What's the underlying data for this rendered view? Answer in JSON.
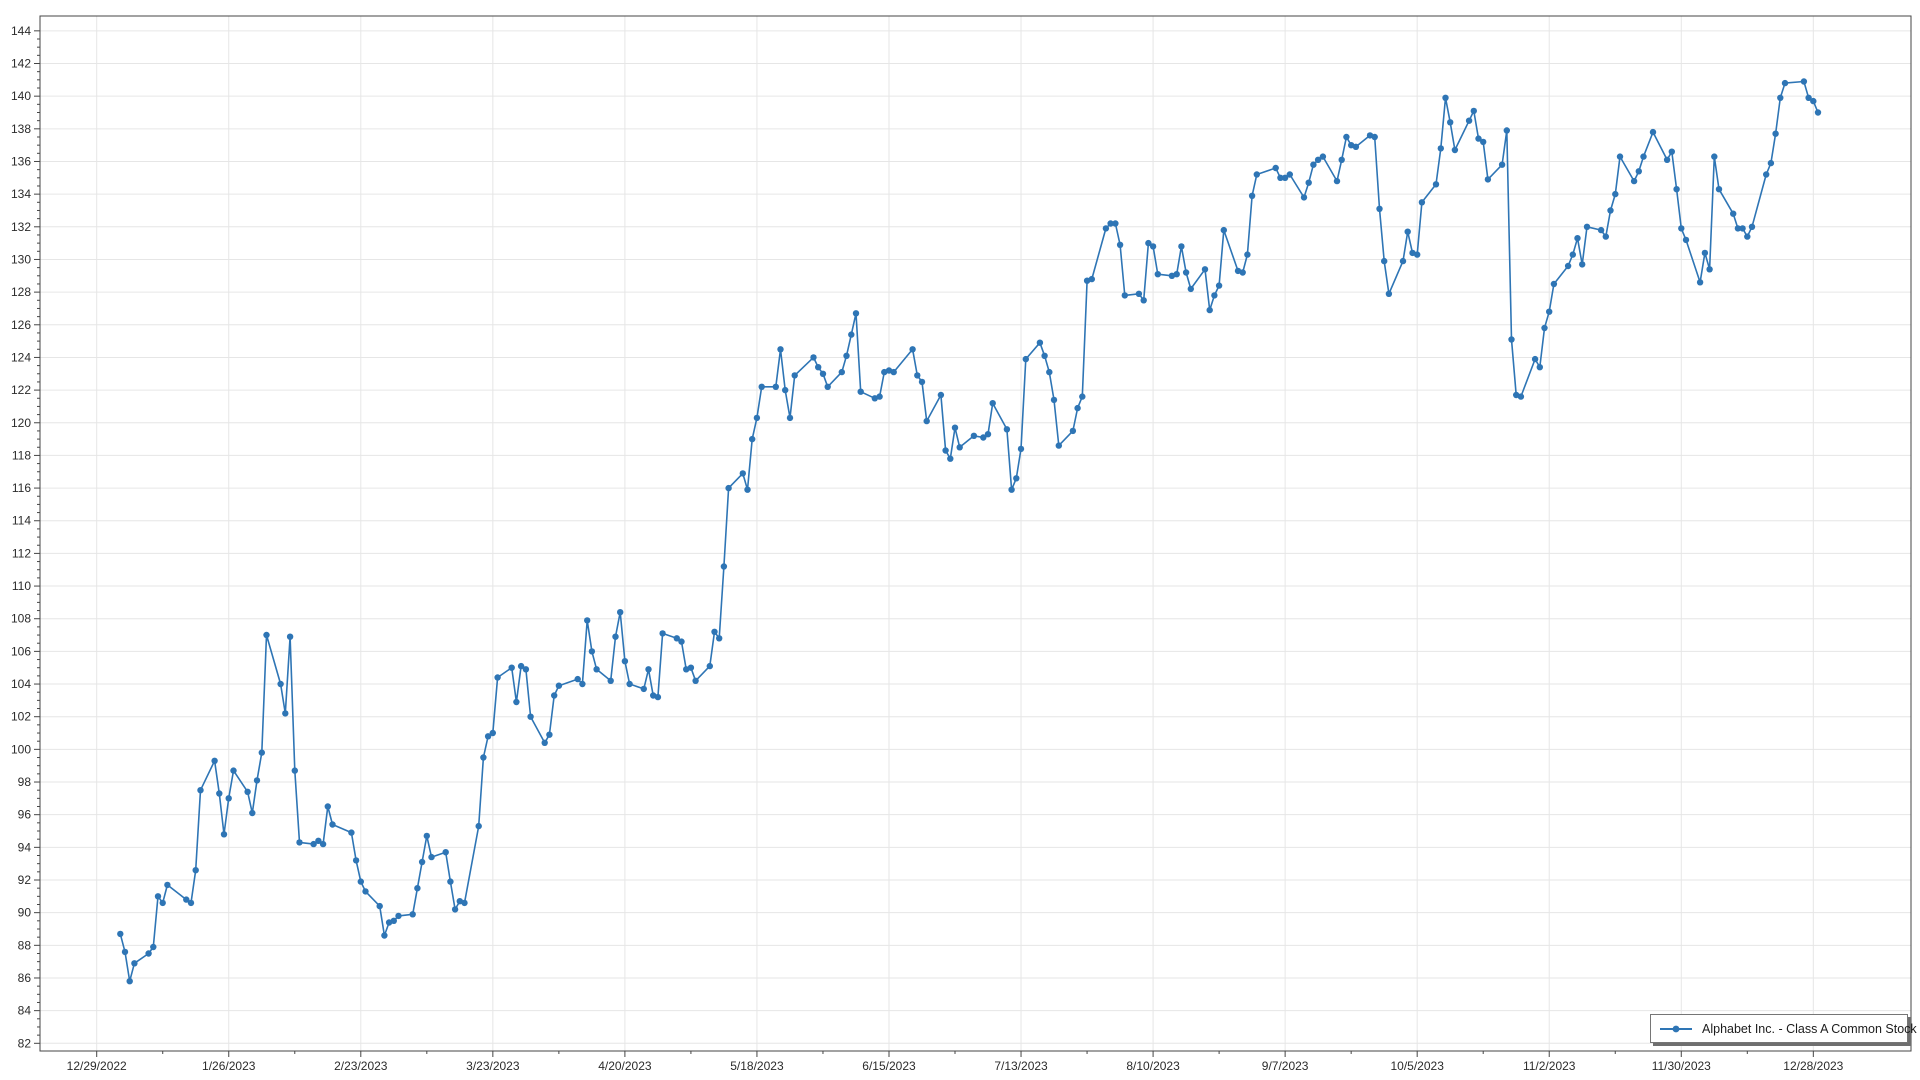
{
  "legend": {
    "label": "Alphabet Inc. - Class A Common Stock"
  },
  "colors": {
    "series": "#2e75b5",
    "grid": "#e6e6e6",
    "axis": "#454545",
    "tick_text": "#2b2b2b",
    "background": "#ffffff",
    "legend_border": "#767676",
    "legend_shadow": "#6f6f6f"
  },
  "chart_data": {
    "type": "line",
    "title": "",
    "series": [
      {
        "name": "Alphabet Inc. - Class A Common Stock"
      }
    ],
    "legend_position": "bottom-right",
    "grid": true,
    "marker": "circle",
    "x_axis": {
      "kind": "date",
      "tick_labels": [
        "12/29/2022",
        "1/26/2023",
        "2/23/2023",
        "3/23/2023",
        "4/20/2023",
        "5/18/2023",
        "6/15/2023",
        "7/13/2023",
        "8/10/2023",
        "9/7/2023",
        "10/5/2023",
        "11/2/2023",
        "11/30/2023",
        "12/28/2023"
      ],
      "minor_tick_interval_days": 14
    },
    "y_axis": {
      "min": 81.5,
      "max": 144.8,
      "tick_step": 2,
      "minor_tick_step": 0.5,
      "tick_labels": [
        82,
        84,
        86,
        88,
        90,
        92,
        94,
        96,
        98,
        100,
        102,
        104,
        106,
        108,
        110,
        112,
        114,
        116,
        118,
        120,
        122,
        124,
        126,
        128,
        130,
        132,
        134,
        136,
        138,
        140,
        142,
        144
      ]
    },
    "dates": [
      "2023-01-03",
      "2023-01-04",
      "2023-01-05",
      "2023-01-06",
      "2023-01-09",
      "2023-01-10",
      "2023-01-11",
      "2023-01-12",
      "2023-01-13",
      "2023-01-17",
      "2023-01-18",
      "2023-01-19",
      "2023-01-20",
      "2023-01-23",
      "2023-01-24",
      "2023-01-25",
      "2023-01-26",
      "2023-01-27",
      "2023-01-30",
      "2023-01-31",
      "2023-02-01",
      "2023-02-02",
      "2023-02-03",
      "2023-02-06",
      "2023-02-07",
      "2023-02-08",
      "2023-02-09",
      "2023-02-10",
      "2023-02-13",
      "2023-02-14",
      "2023-02-15",
      "2023-02-16",
      "2023-02-17",
      "2023-02-21",
      "2023-02-22",
      "2023-02-23",
      "2023-02-24",
      "2023-02-27",
      "2023-02-28",
      "2023-03-01",
      "2023-03-02",
      "2023-03-03",
      "2023-03-06",
      "2023-03-07",
      "2023-03-08",
      "2023-03-09",
      "2023-03-10",
      "2023-03-13",
      "2023-03-14",
      "2023-03-15",
      "2023-03-16",
      "2023-03-17",
      "2023-03-20",
      "2023-03-21",
      "2023-03-22",
      "2023-03-23",
      "2023-03-24",
      "2023-03-27",
      "2023-03-28",
      "2023-03-29",
      "2023-03-30",
      "2023-03-31",
      "2023-04-03",
      "2023-04-04",
      "2023-04-05",
      "2023-04-06",
      "2023-04-10",
      "2023-04-11",
      "2023-04-12",
      "2023-04-13",
      "2023-04-14",
      "2023-04-17",
      "2023-04-18",
      "2023-04-19",
      "2023-04-20",
      "2023-04-21",
      "2023-04-24",
      "2023-04-25",
      "2023-04-26",
      "2023-04-27",
      "2023-04-28",
      "2023-05-01",
      "2023-05-02",
      "2023-05-03",
      "2023-05-04",
      "2023-05-05",
      "2023-05-08",
      "2023-05-09",
      "2023-05-10",
      "2023-05-11",
      "2023-05-12",
      "2023-05-15",
      "2023-05-16",
      "2023-05-17",
      "2023-05-18",
      "2023-05-19",
      "2023-05-22",
      "2023-05-23",
      "2023-05-24",
      "2023-05-25",
      "2023-05-26",
      "2023-05-30",
      "2023-05-31",
      "2023-06-01",
      "2023-06-02",
      "2023-06-05",
      "2023-06-06",
      "2023-06-07",
      "2023-06-08",
      "2023-06-09",
      "2023-06-12",
      "2023-06-13",
      "2023-06-14",
      "2023-06-15",
      "2023-06-16",
      "2023-06-20",
      "2023-06-21",
      "2023-06-22",
      "2023-06-23",
      "2023-06-26",
      "2023-06-27",
      "2023-06-28",
      "2023-06-29",
      "2023-06-30",
      "2023-07-03",
      "2023-07-05",
      "2023-07-06",
      "2023-07-07",
      "2023-07-10",
      "2023-07-11",
      "2023-07-12",
      "2023-07-13",
      "2023-07-14",
      "2023-07-17",
      "2023-07-18",
      "2023-07-19",
      "2023-07-20",
      "2023-07-21",
      "2023-07-24",
      "2023-07-25",
      "2023-07-26",
      "2023-07-27",
      "2023-07-28",
      "2023-07-31",
      "2023-08-01",
      "2023-08-02",
      "2023-08-03",
      "2023-08-04",
      "2023-08-07",
      "2023-08-08",
      "2023-08-09",
      "2023-08-10",
      "2023-08-11",
      "2023-08-14",
      "2023-08-15",
      "2023-08-16",
      "2023-08-17",
      "2023-08-18",
      "2023-08-21",
      "2023-08-22",
      "2023-08-23",
      "2023-08-24",
      "2023-08-25",
      "2023-08-28",
      "2023-08-29",
      "2023-08-30",
      "2023-08-31",
      "2023-09-01",
      "2023-09-05",
      "2023-09-06",
      "2023-09-07",
      "2023-09-08",
      "2023-09-11",
      "2023-09-12",
      "2023-09-13",
      "2023-09-14",
      "2023-09-15",
      "2023-09-18",
      "2023-09-19",
      "2023-09-20",
      "2023-09-21",
      "2023-09-22",
      "2023-09-25",
      "2023-09-26",
      "2023-09-27",
      "2023-09-28",
      "2023-09-29",
      "2023-10-02",
      "2023-10-03",
      "2023-10-04",
      "2023-10-05",
      "2023-10-06",
      "2023-10-09",
      "2023-10-10",
      "2023-10-11",
      "2023-10-12",
      "2023-10-13",
      "2023-10-16",
      "2023-10-17",
      "2023-10-18",
      "2023-10-19",
      "2023-10-20",
      "2023-10-23",
      "2023-10-24",
      "2023-10-25",
      "2023-10-26",
      "2023-10-27",
      "2023-10-30",
      "2023-10-31",
      "2023-11-01",
      "2023-11-02",
      "2023-11-03",
      "2023-11-06",
      "2023-11-07",
      "2023-11-08",
      "2023-11-09",
      "2023-11-10",
      "2023-11-13",
      "2023-11-14",
      "2023-11-15",
      "2023-11-16",
      "2023-11-17",
      "2023-11-20",
      "2023-11-21",
      "2023-11-22",
      "2023-11-24",
      "2023-11-27",
      "2023-11-28",
      "2023-11-29",
      "2023-11-30",
      "2023-12-01",
      "2023-12-04",
      "2023-12-05",
      "2023-12-06",
      "2023-12-07",
      "2023-12-08",
      "2023-12-11",
      "2023-12-12",
      "2023-12-13",
      "2023-12-14",
      "2023-12-15",
      "2023-12-18",
      "2023-12-19",
      "2023-12-20",
      "2023-12-21",
      "2023-12-22",
      "2023-12-26",
      "2023-12-27",
      "2023-12-28",
      "2023-12-29"
    ],
    "values": [
      88.7,
      87.6,
      85.8,
      86.9,
      87.5,
      87.9,
      91.0,
      90.6,
      91.7,
      90.8,
      90.6,
      92.6,
      97.5,
      99.3,
      97.3,
      94.8,
      97.0,
      98.7,
      97.4,
      96.1,
      98.1,
      99.8,
      107.0,
      104.0,
      102.2,
      106.9,
      98.7,
      94.3,
      94.2,
      94.4,
      94.2,
      96.5,
      95.4,
      94.9,
      93.2,
      91.9,
      91.3,
      90.4,
      88.6,
      89.4,
      89.5,
      89.8,
      89.9,
      91.5,
      93.1,
      94.7,
      93.4,
      93.7,
      91.9,
      90.2,
      90.7,
      90.6,
      95.3,
      99.5,
      100.8,
      101.0,
      104.4,
      105.0,
      102.9,
      105.1,
      104.9,
      102.0,
      100.4,
      100.9,
      103.3,
      103.9,
      104.3,
      104.0,
      107.9,
      106.0,
      104.9,
      104.2,
      106.9,
      108.4,
      105.4,
      104.0,
      103.7,
      104.9,
      103.3,
      103.2,
      107.1,
      106.8,
      106.6,
      104.9,
      105.0,
      104.2,
      105.1,
      107.2,
      106.8,
      111.2,
      116.0,
      116.9,
      115.9,
      119.0,
      120.3,
      122.2,
      122.2,
      124.5,
      122.0,
      120.3,
      122.9,
      124.0,
      123.4,
      123.0,
      122.2,
      123.1,
      124.1,
      125.4,
      126.7,
      121.9,
      121.5,
      121.6,
      123.1,
      123.2,
      123.1,
      124.5,
      122.9,
      122.5,
      120.1,
      121.7,
      118.3,
      117.8,
      119.7,
      118.5,
      119.2,
      119.1,
      119.3,
      121.2,
      119.6,
      115.9,
      116.6,
      118.4,
      123.9,
      124.9,
      124.1,
      123.1,
      121.4,
      118.6,
      119.5,
      120.9,
      121.6,
      128.7,
      128.8,
      131.9,
      132.2,
      132.2,
      130.9,
      127.8,
      127.9,
      127.5,
      131.0,
      130.8,
      129.1,
      129.0,
      129.1,
      130.8,
      129.2,
      128.2,
      129.4,
      126.9,
      127.8,
      128.4,
      131.8,
      129.3,
      129.2,
      130.3,
      133.9,
      135.2,
      135.6,
      135.0,
      135.0,
      135.2,
      133.8,
      134.7,
      135.8,
      136.1,
      136.3,
      134.8,
      136.1,
      137.5,
      137.0,
      136.9,
      137.6,
      137.5,
      133.1,
      129.9,
      127.9,
      129.9,
      131.7,
      130.4,
      130.3,
      133.5,
      134.6,
      136.8,
      139.9,
      138.4,
      136.7,
      138.5,
      139.1,
      137.4,
      137.2,
      134.9,
      135.8,
      137.9,
      125.1,
      121.7,
      121.6,
      123.9,
      123.4,
      125.8,
      126.8,
      128.5,
      129.6,
      130.3,
      131.3,
      129.7,
      132.0,
      131.8,
      131.4,
      133.0,
      134.0,
      136.3,
      134.8,
      135.4,
      136.3,
      137.8,
      136.1,
      136.6,
      134.3,
      131.9,
      131.2,
      128.6,
      130.4,
      129.4,
      136.3,
      134.3,
      132.8,
      131.9,
      131.9,
      131.4,
      132.0,
      135.2,
      135.9,
      137.7,
      139.9,
      140.8,
      140.9,
      139.9,
      139.7,
      139.0
    ]
  }
}
